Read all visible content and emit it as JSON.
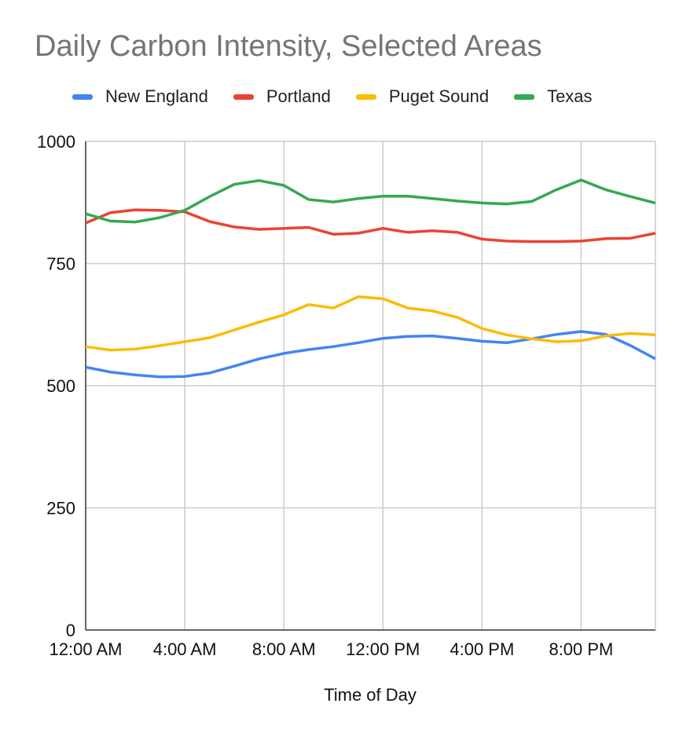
{
  "chart_data": {
    "type": "line",
    "title": "Daily Carbon Intensity, Selected Areas",
    "xlabel": "Time of Day",
    "ylabel": "",
    "ylim": [
      0,
      1000
    ],
    "yticks": [
      0,
      250,
      500,
      750,
      1000
    ],
    "x_tick_labels": [
      "12:00 AM",
      "4:00 AM",
      "8:00 AM",
      "12:00 PM",
      "4:00 PM",
      "8:00 PM"
    ],
    "x_tick_hours": [
      0,
      4,
      8,
      12,
      16,
      20
    ],
    "x": [
      0,
      1,
      2,
      3,
      4,
      5,
      6,
      7,
      8,
      9,
      10,
      11,
      12,
      13,
      14,
      15,
      16,
      17,
      18,
      19,
      20,
      21,
      22,
      23
    ],
    "xlim": [
      0,
      23
    ],
    "grid": true,
    "legend_position": "top",
    "series": [
      {
        "name": "New England",
        "color": "#4285F4",
        "values": [
          538,
          528,
          522,
          518,
          519,
          526,
          540,
          555,
          566,
          574,
          580,
          588,
          597,
          601,
          602,
          597,
          591,
          588,
          596,
          605,
          611,
          605,
          582,
          555
        ]
      },
      {
        "name": "Portland",
        "color": "#EA4335",
        "values": [
          833,
          854,
          860,
          859,
          856,
          836,
          825,
          820,
          822,
          824,
          810,
          812,
          822,
          814,
          817,
          814,
          800,
          796,
          795,
          795,
          796,
          801,
          802,
          812
        ]
      },
      {
        "name": "Puget Sound",
        "color": "#FBBC04",
        "values": [
          580,
          573,
          575,
          582,
          590,
          598,
          614,
          630,
          645,
          666,
          659,
          682,
          678,
          659,
          653,
          640,
          617,
          604,
          596,
          590,
          592,
          602,
          607,
          604
        ]
      },
      {
        "name": "Texas",
        "color": "#34A853",
        "values": [
          852,
          837,
          835,
          844,
          859,
          887,
          912,
          920,
          910,
          881,
          876,
          883,
          888,
          888,
          883,
          878,
          874,
          872,
          877,
          901,
          921,
          901,
          887,
          874
        ]
      }
    ]
  }
}
